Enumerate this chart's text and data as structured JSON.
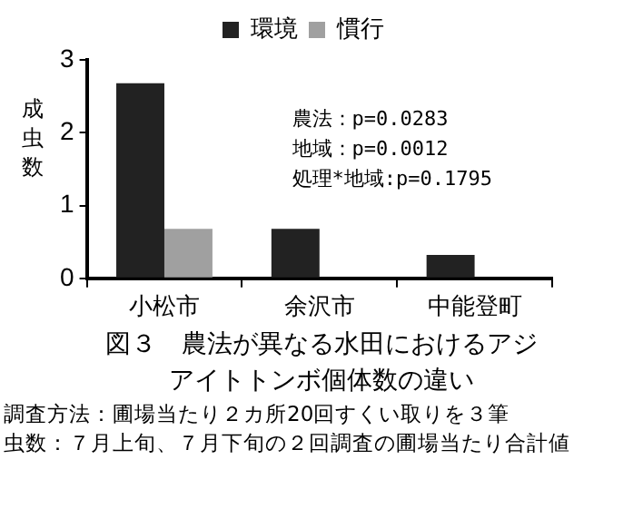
{
  "chart_data": {
    "type": "bar",
    "title": "図３　農法が異なる水田におけるアジアイトトンボ個体数の違い",
    "ylabel": "成虫数",
    "categories": [
      "小松市",
      "余沢市",
      "中能登町"
    ],
    "series": [
      {
        "name": "環境",
        "color": "#222222",
        "values": [
          2.68,
          0.68,
          0.32
        ]
      },
      {
        "name": "慣行",
        "color": "#a0a0a0",
        "values": [
          0.68,
          0,
          0
        ]
      }
    ],
    "ylim": [
      0,
      3
    ],
    "yticks": [
      0,
      1,
      2,
      3
    ],
    "grid": false,
    "legend": "top",
    "annotations": [
      "農法：p=0.0283",
      "地域：p=0.0012",
      "処理*地域:p=0.1795",
      "調査方法：圃場当たり２カ所20回すくい取りを３筆",
      "虫数：７月上旬、７月下旬の２回調査の圃場当たり合計値"
    ]
  }
}
